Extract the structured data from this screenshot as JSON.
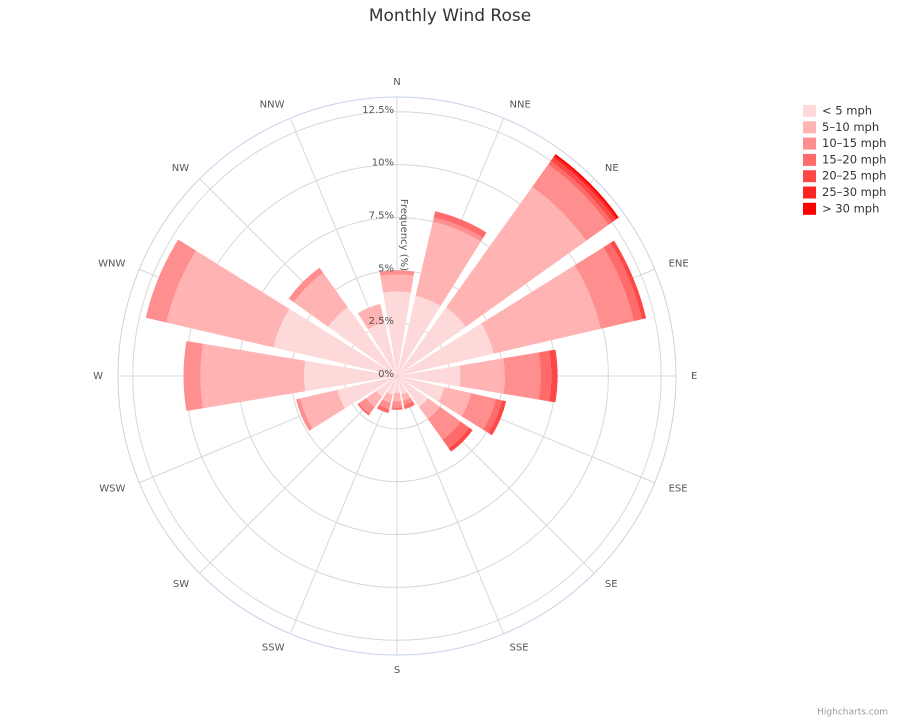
{
  "chart_data": {
    "type": "windrose",
    "title": "Monthly Wind Rose",
    "y_axis_label": "Frequency (%)",
    "credits": "Highcharts.com",
    "categories": [
      "N",
      "NNE",
      "NE",
      "ENE",
      "E",
      "ESE",
      "SE",
      "SSE",
      "S",
      "SSW",
      "SW",
      "WSW",
      "W",
      "WNW",
      "NW",
      "NNW"
    ],
    "ylim": [
      0,
      13.2
    ],
    "yticks": [
      {
        "value": 0,
        "label": "0%"
      },
      {
        "value": 2.5,
        "label": "2.5%"
      },
      {
        "value": 5,
        "label": "5%"
      },
      {
        "value": 7.5,
        "label": "7.5%"
      },
      {
        "value": 10,
        "label": "10%"
      },
      {
        "value": 12.5,
        "label": "12.5%"
      }
    ],
    "grid": true,
    "legend": "top-right",
    "series": [
      {
        "name": "< 5 mph",
        "color": "#fdd9d9",
        "values": [
          4.0,
          3.9,
          4.0,
          4.7,
          3.0,
          2.3,
          1.8,
          0.9,
          0.8,
          0.9,
          1.2,
          2.9,
          4.4,
          6.0,
          4.0,
          2.6
        ]
      },
      {
        "name": "5–10 mph",
        "color": "#ffb3b3",
        "values": [
          0.8,
          3.6,
          7.0,
          5.2,
          2.1,
          1.3,
          0.7,
          0.3,
          0.4,
          0.4,
          0.6,
          1.8,
          4.9,
          5.2,
          2.0,
          0.9
        ]
      },
      {
        "name": "10–15 mph",
        "color": "#ff8f8f",
        "values": [
          0.2,
          0.2,
          1.3,
          1.6,
          1.7,
          1.2,
          1.2,
          0.2,
          0.3,
          0.3,
          0.4,
          0.2,
          0.8,
          1.0,
          0.3,
          0
        ]
      },
      {
        "name": "15–20 mph",
        "color": "#ff6b6b",
        "values": [
          0,
          0.3,
          0.2,
          0.4,
          0.5,
          0.3,
          0.5,
          0.2,
          0.1,
          0.2,
          0.1,
          0,
          0,
          0,
          0,
          0
        ]
      },
      {
        "name": "20–25 mph",
        "color": "#ff4747",
        "values": [
          0,
          0,
          0.2,
          0.2,
          0.3,
          0.2,
          0.2,
          0,
          0,
          0,
          0,
          0,
          0,
          0,
          0,
          0
        ]
      },
      {
        "name": "25–30 mph",
        "color": "#ff2424",
        "values": [
          0,
          0,
          0.1,
          0,
          0,
          0,
          0,
          0,
          0,
          0,
          0,
          0,
          0,
          0,
          0,
          0
        ]
      },
      {
        "name": "> 30 mph",
        "color": "#ff0000",
        "values": [
          0,
          0,
          0.1,
          0,
          0,
          0,
          0,
          0,
          0,
          0,
          0,
          0,
          0,
          0,
          0,
          0
        ]
      }
    ]
  }
}
